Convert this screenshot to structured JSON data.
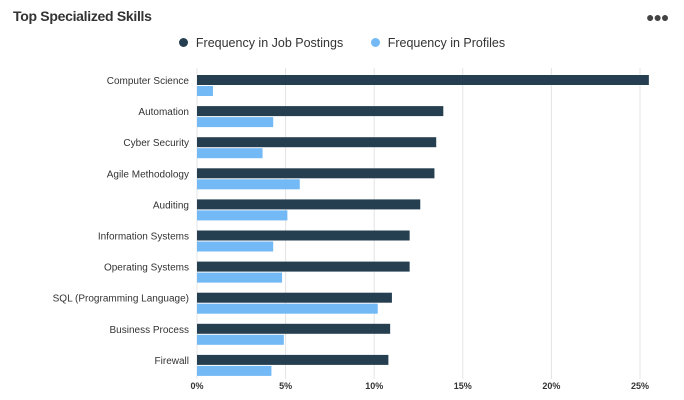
{
  "header": {
    "title": "Top Specialized Skills",
    "menu_icon": "more-horizontal-icon"
  },
  "chart_data": {
    "type": "bar",
    "orientation": "horizontal",
    "title": "Top Specialized Skills",
    "categories": [
      "Computer Science",
      "Automation",
      "Cyber Security",
      "Agile Methodology",
      "Auditing",
      "Information Systems",
      "Operating Systems",
      "SQL (Programming Language)",
      "Business Process",
      "Firewall"
    ],
    "series": [
      {
        "name": "Frequency in Job Postings",
        "color": "#263f50",
        "values": [
          25.5,
          13.9,
          13.5,
          13.4,
          12.6,
          12.0,
          12.0,
          11.0,
          10.9,
          10.8
        ]
      },
      {
        "name": "Frequency in Profiles",
        "color": "#72b9f5",
        "values": [
          0.9,
          4.3,
          3.7,
          5.8,
          5.1,
          4.3,
          4.8,
          10.2,
          4.9,
          4.2
        ]
      }
    ],
    "xlim": [
      0,
      25.5
    ],
    "xticks": [
      "0%",
      "5%",
      "10%",
      "15%",
      "20%",
      "25%"
    ],
    "grid": true,
    "legend": "top-center"
  }
}
